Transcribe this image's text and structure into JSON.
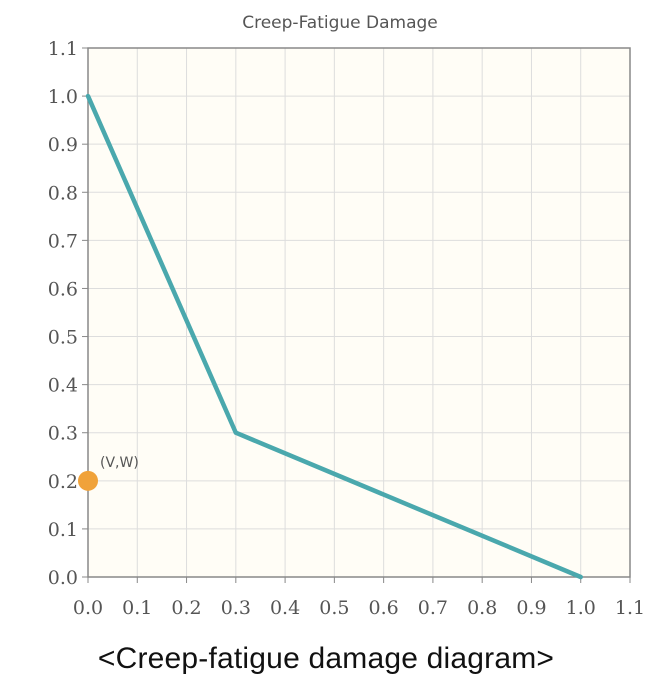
{
  "chart_data": {
    "type": "line",
    "title": "Creep-Fatigue Damage",
    "xlabel": "",
    "ylabel": "",
    "xlim": [
      0.0,
      1.1
    ],
    "ylim": [
      0.0,
      1.1
    ],
    "x_ticks": [
      "0.0",
      "0.1",
      "0.2",
      "0.3",
      "0.4",
      "0.5",
      "0.6",
      "0.7",
      "0.8",
      "0.9",
      "1.0",
      "1.1"
    ],
    "y_ticks": [
      "0.0",
      "0.1",
      "0.2",
      "0.3",
      "0.4",
      "0.5",
      "0.6",
      "0.7",
      "0.8",
      "0.9",
      "1.0",
      "1.1"
    ],
    "grid": true,
    "series": [
      {
        "x": [
          0.0,
          0.3,
          1.0
        ],
        "y": [
          1.0,
          0.3,
          0.0
        ],
        "color": "#4aa8ad"
      }
    ],
    "points": [
      {
        "x": 0.0,
        "y": 0.2,
        "label": "(V,W)",
        "color": "#f0a23a"
      }
    ],
    "colors": {
      "plot_background": "#fffdf6",
      "grid": "#dddddd",
      "axis": "#888888"
    }
  },
  "caption": "<Creep-fatigue damage diagram>"
}
